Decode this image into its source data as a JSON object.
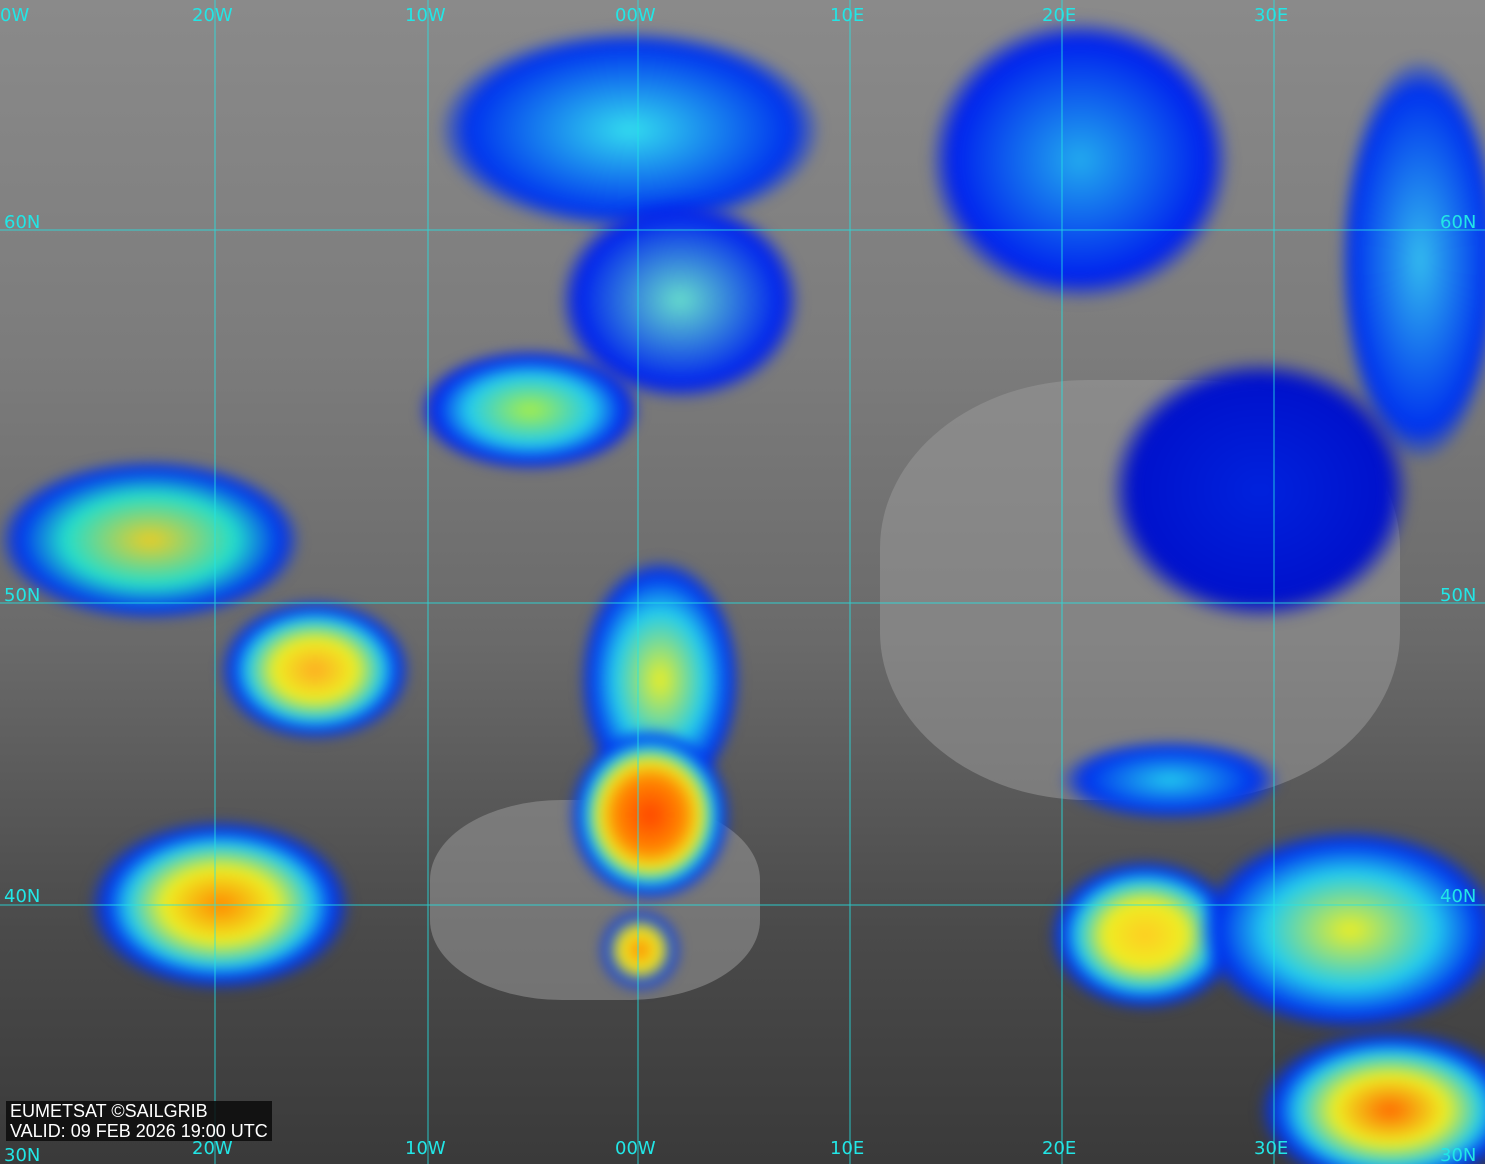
{
  "caption": {
    "credit": "EUMETSAT ©SAILGRIB",
    "valid": "VALID:  09 FEB 2026 19:00 UTC"
  },
  "grid": {
    "line_color": "#22e6e6",
    "top_labels": [
      "0W",
      "20W",
      "10W",
      "00W",
      "10E",
      "20E",
      "30E"
    ],
    "bottom_labels": [
      "20W",
      "10W",
      "00W",
      "10E",
      "20E",
      "30E"
    ],
    "left_labels": [
      "60N",
      "50N",
      "40N",
      "30N"
    ],
    "right_labels": [
      "60N",
      "50N",
      "40N",
      "30N"
    ]
  },
  "colors": {
    "cloud_blue": "#0022dd",
    "cloud_cyan": "#22ccee",
    "cloud_yellow": "#eeee22",
    "cloud_orange": "#ff6600",
    "coastline": "#ffffff"
  }
}
